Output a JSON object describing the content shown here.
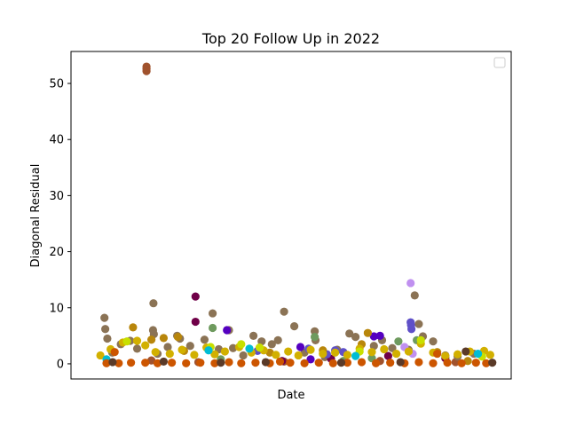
{
  "chart_data": {
    "type": "scatter",
    "title": "Top 20 Follow Up in 2022",
    "xlabel": "Date",
    "ylabel": "Diagonal Residual",
    "ylim": [
      -2.7,
      55.7
    ],
    "xlim": [
      0,
      100
    ],
    "x_ticks_shown": false,
    "y_ticks": [
      0,
      10,
      20,
      30,
      40,
      50
    ],
    "grid": false,
    "legend": "top-right (empty)",
    "series": [
      {
        "color": "#a0522d",
        "points": [
          [
            14.8,
            53.0
          ],
          [
            14.8,
            52.6
          ],
          [
            14.8,
            52.2
          ],
          [
            16.0,
            0.6
          ],
          [
            27.5,
            0.3
          ],
          [
            48.5,
            0.4
          ],
          [
            72.0,
            0.5
          ],
          [
            90.5,
            0.3
          ]
        ]
      },
      {
        "color": "#8b7355",
        "points": [
          [
            4.5,
            8.2
          ],
          [
            4.7,
            6.2
          ],
          [
            5.2,
            4.5
          ],
          [
            6.4,
            2.0
          ],
          [
            8.5,
            3.5
          ],
          [
            10.8,
            4.1
          ],
          [
            12.5,
            2.7
          ],
          [
            16.5,
            10.8
          ],
          [
            16.4,
            6.0
          ],
          [
            16.6,
            5.3
          ],
          [
            17.5,
            1.8
          ],
          [
            20.0,
            3.0
          ],
          [
            22.3,
            5.0
          ],
          [
            23.0,
            4.5
          ],
          [
            25.5,
            3.2
          ],
          [
            29.0,
            4.3
          ],
          [
            31.0,
            9.0
          ],
          [
            32.5,
            2.6
          ],
          [
            35.0,
            6.0
          ],
          [
            36.0,
            2.8
          ],
          [
            38.5,
            1.5
          ],
          [
            41.0,
            5.0
          ],
          [
            43.0,
            4.0
          ],
          [
            45.5,
            3.5
          ],
          [
            47.0,
            4.2
          ],
          [
            48.5,
            9.3
          ],
          [
            51.0,
            6.7
          ],
          [
            53.5,
            2.0
          ],
          [
            56.0,
            5.8
          ],
          [
            56.2,
            4.2
          ],
          [
            58.5,
            1.2
          ],
          [
            61.5,
            2.5
          ],
          [
            64.5,
            5.4
          ],
          [
            66.0,
            4.8
          ],
          [
            70.5,
            3.2
          ],
          [
            72.5,
            4.2
          ],
          [
            75.0,
            2.8
          ],
          [
            79.0,
            2.5
          ],
          [
            80.5,
            12.2
          ],
          [
            81.5,
            7.1
          ],
          [
            82.5,
            4.9
          ],
          [
            85.0,
            4.0
          ],
          [
            88.0,
            1.5
          ],
          [
            91.0,
            1.3
          ],
          [
            95.0,
            1.8
          ]
        ]
      },
      {
        "color": "#6e9a5e",
        "points": [
          [
            31.0,
            6.4
          ],
          [
            33.0,
            0.8
          ],
          [
            56.0,
            4.8
          ],
          [
            63.0,
            0.5
          ],
          [
            70.0,
            1.0
          ],
          [
            76.5,
            4.0
          ],
          [
            81.0,
            4.2
          ]
        ]
      },
      {
        "color": "#700048",
        "points": [
          [
            26.8,
            12.0
          ],
          [
            26.8,
            7.5
          ],
          [
            48.0,
            0.5
          ],
          [
            60.0,
            0.9
          ],
          [
            74.0,
            1.4
          ],
          [
            88.0,
            1.0
          ]
        ]
      },
      {
        "color": "#5500c0",
        "points": [
          [
            34.5,
            6.0
          ],
          [
            52.5,
            3.0
          ],
          [
            70.5,
            4.9
          ],
          [
            72.0,
            5.0
          ],
          [
            55.0,
            0.8
          ]
        ]
      },
      {
        "color": "#5f50c8",
        "points": [
          [
            42.0,
            2.3
          ],
          [
            54.5,
            2.7
          ],
          [
            59.0,
            1.7
          ],
          [
            61.0,
            2.4
          ],
          [
            63.0,
            2.1
          ],
          [
            79.5,
            7.4
          ],
          [
            79.6,
            6.9
          ],
          [
            79.7,
            6.2
          ]
        ]
      },
      {
        "color": "#c090f0",
        "points": [
          [
            79.5,
            14.4
          ],
          [
            78.0,
            3.0
          ],
          [
            80.0,
            1.8
          ]
        ]
      },
      {
        "color": "#b8860b",
        "points": [
          [
            11.5,
            6.5
          ],
          [
            16.0,
            4.3
          ],
          [
            19.0,
            4.6
          ],
          [
            22.5,
            4.8
          ],
          [
            24.0,
            2.3
          ],
          [
            45.0,
            2.0
          ],
          [
            58.0,
            2.4
          ],
          [
            67.5,
            3.5
          ],
          [
            69.0,
            5.5
          ],
          [
            86.0,
            2.1
          ],
          [
            93.5,
            0.5
          ]
        ]
      },
      {
        "color": "#d2b000",
        "points": [
          [
            3.5,
            1.5
          ],
          [
            6.0,
            2.6
          ],
          [
            9.0,
            3.8
          ],
          [
            12.5,
            4.1
          ],
          [
            14.5,
            3.3
          ],
          [
            17.0,
            2.1
          ],
          [
            20.5,
            1.8
          ],
          [
            23.5,
            2.5
          ],
          [
            26.5,
            1.6
          ],
          [
            29.5,
            2.9
          ],
          [
            31.5,
            1.7
          ],
          [
            34.0,
            2.2
          ],
          [
            37.5,
            3.0
          ],
          [
            40.5,
            2.0
          ],
          [
            43.5,
            2.4
          ],
          [
            46.5,
            1.6
          ],
          [
            49.5,
            2.2
          ],
          [
            52.0,
            1.5
          ],
          [
            55.0,
            2.5
          ],
          [
            58.0,
            1.8
          ],
          [
            61.0,
            2.0
          ],
          [
            64.0,
            1.6
          ],
          [
            67.0,
            2.7
          ],
          [
            70.0,
            2.1
          ],
          [
            73.0,
            2.6
          ],
          [
            76.0,
            1.8
          ],
          [
            79.0,
            2.2
          ],
          [
            82.0,
            3.6
          ],
          [
            85.0,
            2.0
          ],
          [
            88.0,
            1.4
          ],
          [
            91.0,
            1.7
          ],
          [
            94.0,
            2.2
          ],
          [
            97.5,
            2.3
          ],
          [
            99.0,
            1.6
          ]
        ]
      },
      {
        "color": "#c8e000",
        "points": [
          [
            10.0,
            4.0
          ],
          [
            30.5,
            3.0
          ],
          [
            38.0,
            3.5
          ],
          [
            42.5,
            2.9
          ],
          [
            67.0,
            2.2
          ],
          [
            82.0,
            4.2
          ],
          [
            97.0,
            1.3
          ]
        ]
      },
      {
        "color": "#00bcd4",
        "points": [
          [
            5.0,
            0.8
          ],
          [
            30.0,
            2.4
          ],
          [
            40.0,
            2.7
          ],
          [
            66.0,
            1.4
          ],
          [
            96.0,
            1.8
          ]
        ]
      },
      {
        "color": "#cc5500",
        "points": [
          [
            5.0,
            0.1
          ],
          [
            8.0,
            0.1
          ],
          [
            11.0,
            0.2
          ],
          [
            14.5,
            0.2
          ],
          [
            17.5,
            0.1
          ],
          [
            21.0,
            0.2
          ],
          [
            24.5,
            0.1
          ],
          [
            28.0,
            0.2
          ],
          [
            31.5,
            0.1
          ],
          [
            35.0,
            0.3
          ],
          [
            38.0,
            0.1
          ],
          [
            41.5,
            0.2
          ],
          [
            45.0,
            0.1
          ],
          [
            47.5,
            0.4
          ],
          [
            50.0,
            0.2
          ],
          [
            53.5,
            0.1
          ],
          [
            57.0,
            0.2
          ],
          [
            60.5,
            0.1
          ],
          [
            64.0,
            0.2
          ],
          [
            67.5,
            0.3
          ],
          [
            71.0,
            0.1
          ],
          [
            74.5,
            0.2
          ],
          [
            78.0,
            0.1
          ],
          [
            81.5,
            0.3
          ],
          [
            85.0,
            0.1
          ],
          [
            88.5,
            0.2
          ],
          [
            92.0,
            0.1
          ],
          [
            95.5,
            0.2
          ],
          [
            98.0,
            0.1
          ],
          [
            7.0,
            2.1
          ],
          [
            86.0,
            1.8
          ]
        ]
      },
      {
        "color": "#5a3a28",
        "points": [
          [
            6.5,
            0.3
          ],
          [
            19.0,
            0.4
          ],
          [
            33.0,
            0.2
          ],
          [
            44.0,
            0.3
          ],
          [
            62.5,
            0.2
          ],
          [
            77.0,
            0.3
          ],
          [
            93.0,
            2.2
          ],
          [
            99.5,
            0.2
          ]
        ]
      }
    ]
  }
}
